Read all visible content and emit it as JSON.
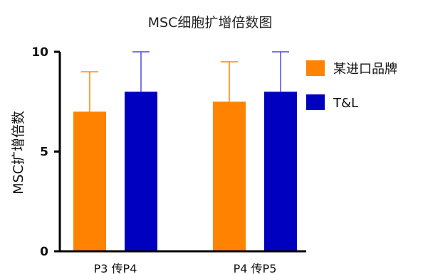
{
  "chart_data": {
    "type": "bar",
    "title": "MSC细胞扩增倍数图",
    "ylabel": "MSC扩增倍数",
    "xlabel": "",
    "categories": [
      "P3 传P4",
      "P4 传P5"
    ],
    "ylim": [
      0,
      10
    ],
    "yticks": [
      0,
      5,
      10
    ],
    "series": [
      {
        "name": "某进口品牌",
        "values": [
          7,
          7.5
        ],
        "error_upper": [
          9,
          9.5
        ],
        "color": "#FF8200",
        "error_color": "#FF8200"
      },
      {
        "name": "T&L",
        "values": [
          8,
          8
        ],
        "error_upper": [
          10,
          10
        ],
        "color": "#0000C0",
        "error_color": "#4A4AE0"
      }
    ],
    "legend_position": "right",
    "grid": false
  }
}
